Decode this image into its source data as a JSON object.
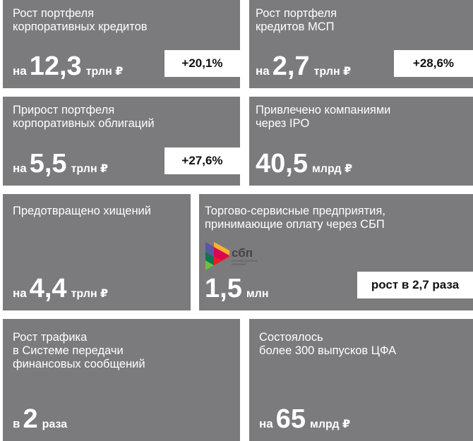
{
  "cards": [
    {
      "title": "Рост портфеля\nкорпоративных кредитов",
      "prefix": "на",
      "number": "12,3",
      "unit": "трлн ₽",
      "badge": "+20,1%"
    },
    {
      "title": "Рост портфеля\nкредитов МСП",
      "prefix": "на",
      "number": "2,7",
      "unit": "трлн ₽",
      "badge": "+28,6%"
    },
    {
      "title": "Прирост портфеля\nкорпоративных облигаций",
      "prefix": "на",
      "number": "5,5",
      "unit": "трлн ₽",
      "badge": "+27,6%"
    },
    {
      "title": "Привлечено компаниями\nчерез IPO",
      "number": "40,5",
      "unit": "млрд ₽"
    },
    {
      "title": "Предотвращено хищений",
      "prefix": "на",
      "number": "4,4",
      "unit": "трлн ₽"
    },
    {
      "title": "Торгово-сервисные предприятия,\nпринимающие оплату через СБП",
      "number": "1,5",
      "unit": "млн",
      "badge": "рост в 2,7 раза",
      "logo": {
        "word": "сбп",
        "sub1": "система быстрых",
        "sub2": "платежей",
        "icon": "sbp-logo-icon"
      }
    },
    {
      "title": "Рост трафика\nв Системе передачи\nфинансовых сообщений",
      "prefix": "в",
      "number": "2",
      "unit": "раза"
    },
    {
      "title": "Состоялось\nболее 300 выпусков ЦФА",
      "prefix": "на",
      "number": "65",
      "unit": "млрд ₽"
    }
  ],
  "colors": {
    "card_bg": "#7b7b7d",
    "badge_bg": "#ffffff",
    "text": "#ffffff"
  }
}
